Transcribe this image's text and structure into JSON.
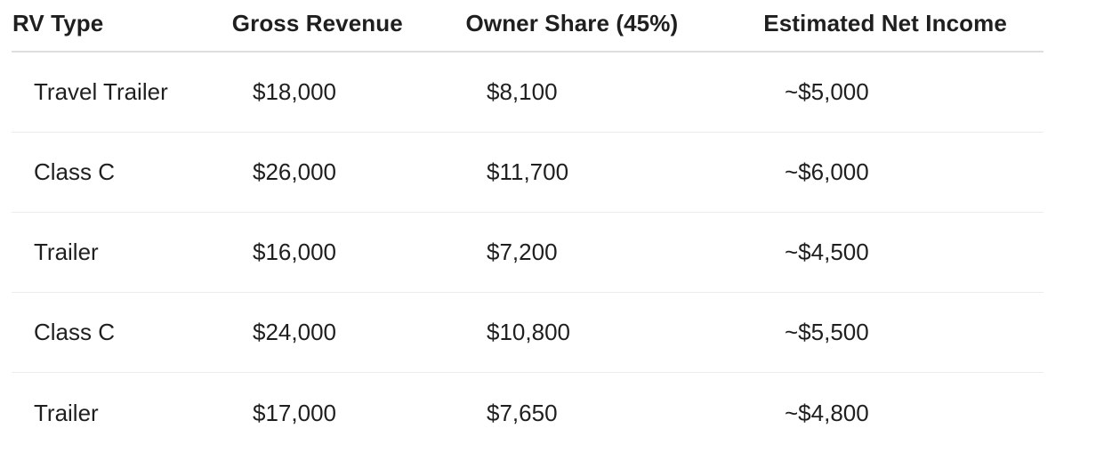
{
  "table": {
    "headers": [
      "RV Type",
      "Gross Revenue",
      "Owner Share (45%)",
      "Estimated Net Income"
    ],
    "rows": [
      [
        "Travel Trailer",
        "$18,000",
        "$8,100",
        "~$5,000"
      ],
      [
        "Class C",
        "$26,000",
        "$11,700",
        "~$6,000"
      ],
      [
        "Trailer",
        "$16,000",
        "$7,200",
        "~$4,500"
      ],
      [
        "Class C",
        "$24,000",
        "$10,800",
        "~$5,500"
      ],
      [
        "Trailer",
        "$17,000",
        "$7,650",
        "~$4,800"
      ]
    ]
  }
}
